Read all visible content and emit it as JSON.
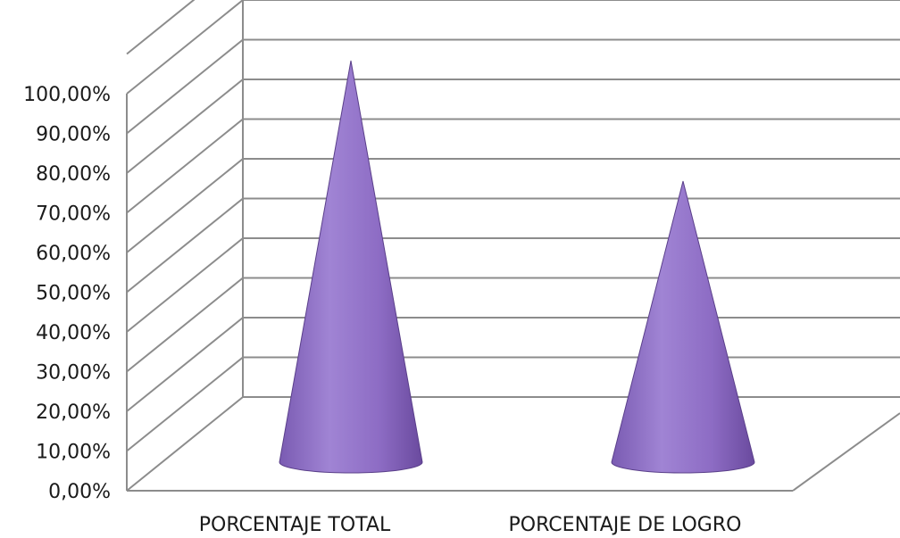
{
  "chart_data": {
    "type": "bar",
    "shape": "cone-3d",
    "categories": [
      "PORCENTAJE TOTAL",
      "PORCENTAJE DE LOGRO"
    ],
    "values": [
      100,
      70
    ],
    "ylim": [
      0,
      100
    ],
    "y_ticks": [
      "0,00%",
      "10,00%",
      "20,00%",
      "30,00%",
      "40,00%",
      "50,00%",
      "60,00%",
      "70,00%",
      "80,00%",
      "90,00%",
      "100,00%"
    ],
    "y_ticks_top_extra_gridline": true,
    "grid": true,
    "legend": "none",
    "colors": {
      "cone": "#9370c8",
      "cone_dark": "#6e4fa3",
      "cone_light": "#a98bd6",
      "grid": "#8c8c8c"
    }
  }
}
